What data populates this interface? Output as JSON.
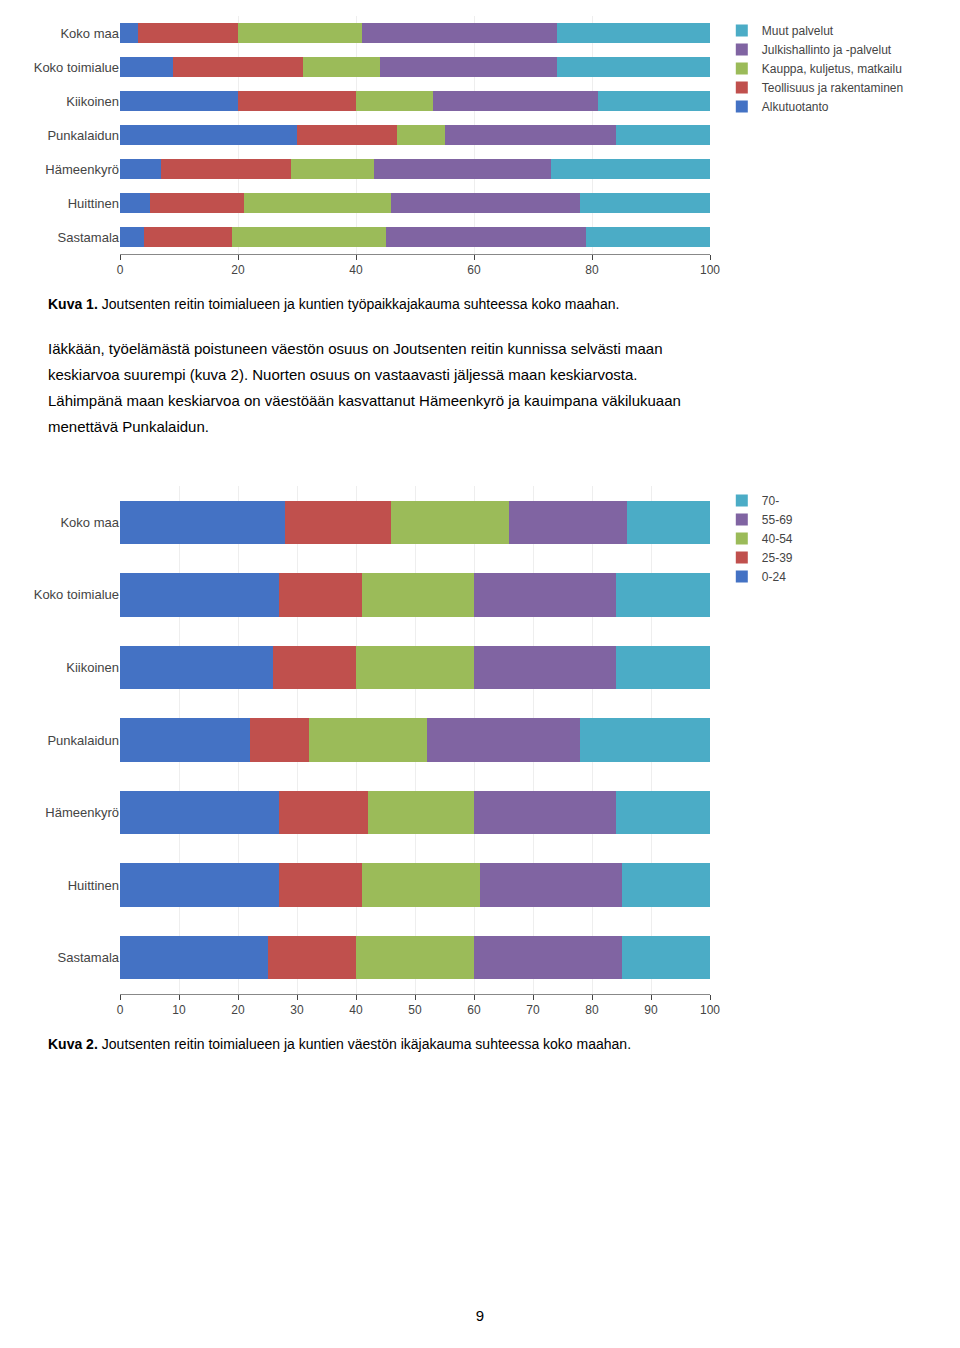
{
  "chart_data": [
    {
      "type": "bar",
      "orientation": "horizontal",
      "stacked": true,
      "categories": [
        "Koko maa",
        "Koko toimialue",
        "Kiikoinen",
        "Punkalaidun",
        "Hämeenkyrö",
        "Huittinen",
        "Sastamala"
      ],
      "series": [
        {
          "name": "Alkutuotanto",
          "color": "#4472c4",
          "values": [
            3,
            9,
            20,
            30,
            7,
            5,
            4
          ]
        },
        {
          "name": "Teollisuus ja rakentaminen",
          "color": "#c0504d",
          "values": [
            17,
            22,
            20,
            17,
            22,
            16,
            15
          ]
        },
        {
          "name": "Kauppa, kuljetus, matkailu",
          "color": "#9bbb59",
          "values": [
            21,
            13,
            13,
            8,
            14,
            25,
            26
          ]
        },
        {
          "name": "Julkishallinto ja -palvelut",
          "color": "#8064a2",
          "values": [
            33,
            30,
            28,
            29,
            30,
            32,
            34
          ]
        },
        {
          "name": "Muut palvelut",
          "color": "#4bacc6",
          "values": [
            26,
            26,
            19,
            16,
            27,
            22,
            21
          ]
        }
      ],
      "xlim": [
        0,
        100
      ],
      "xticks": [
        0,
        20,
        40,
        60,
        80,
        100
      ],
      "grid": true,
      "legend": "right",
      "annotations": [
        "Kuva 1.",
        "Joutsenten reitin toimialueen ja kuntien työpaikkajakauma suhteessa koko maahan."
      ]
    },
    {
      "type": "bar",
      "orientation": "horizontal",
      "stacked": true,
      "categories": [
        "Koko maa",
        "Koko toimialue",
        "Kiikoinen",
        "Punkalaidun",
        "Hämeenkyrö",
        "Huittinen",
        "Sastamala"
      ],
      "series": [
        {
          "name": "0-24",
          "color": "#4472c4",
          "values": [
            28,
            27,
            26,
            22,
            27,
            27,
            25
          ]
        },
        {
          "name": "25-39",
          "color": "#c0504d",
          "values": [
            18,
            14,
            14,
            10,
            15,
            14,
            15
          ]
        },
        {
          "name": "40-54",
          "color": "#9bbb59",
          "values": [
            20,
            19,
            20,
            20,
            18,
            20,
            20
          ]
        },
        {
          "name": "55-69",
          "color": "#8064a2",
          "values": [
            20,
            24,
            24,
            26,
            24,
            24,
            25
          ]
        },
        {
          "name": "70-",
          "color": "#4bacc6",
          "values": [
            14,
            16,
            16,
            22,
            16,
            15,
            15
          ]
        }
      ],
      "xlim": [
        0,
        100
      ],
      "xticks": [
        0,
        10,
        20,
        30,
        40,
        50,
        60,
        70,
        80,
        90,
        100
      ],
      "grid": true,
      "legend": "right",
      "annotations": [
        "Kuva 2.",
        "Joutsenten reitin toimialueen ja kuntien väestön ikäjakauma suhteessa koko maahan."
      ]
    }
  ],
  "paragraph_lines": [
    "Iäkkään, työelämästä poistuneen väestön osuus on Joutsenten reitin kunnissa selvästi maan",
    "keskiarvoa suurempi (kuva 2). Nuorten osuus on vastaavasti jäljessä maan keskiarvosta.",
    "Lähimpänä maan keskiarvoa on väestöään kasvattanut Hämeenkyrö ja kauimpana väkilukuaan",
    "menettävä Punkalaidun."
  ],
  "page_number": "9"
}
